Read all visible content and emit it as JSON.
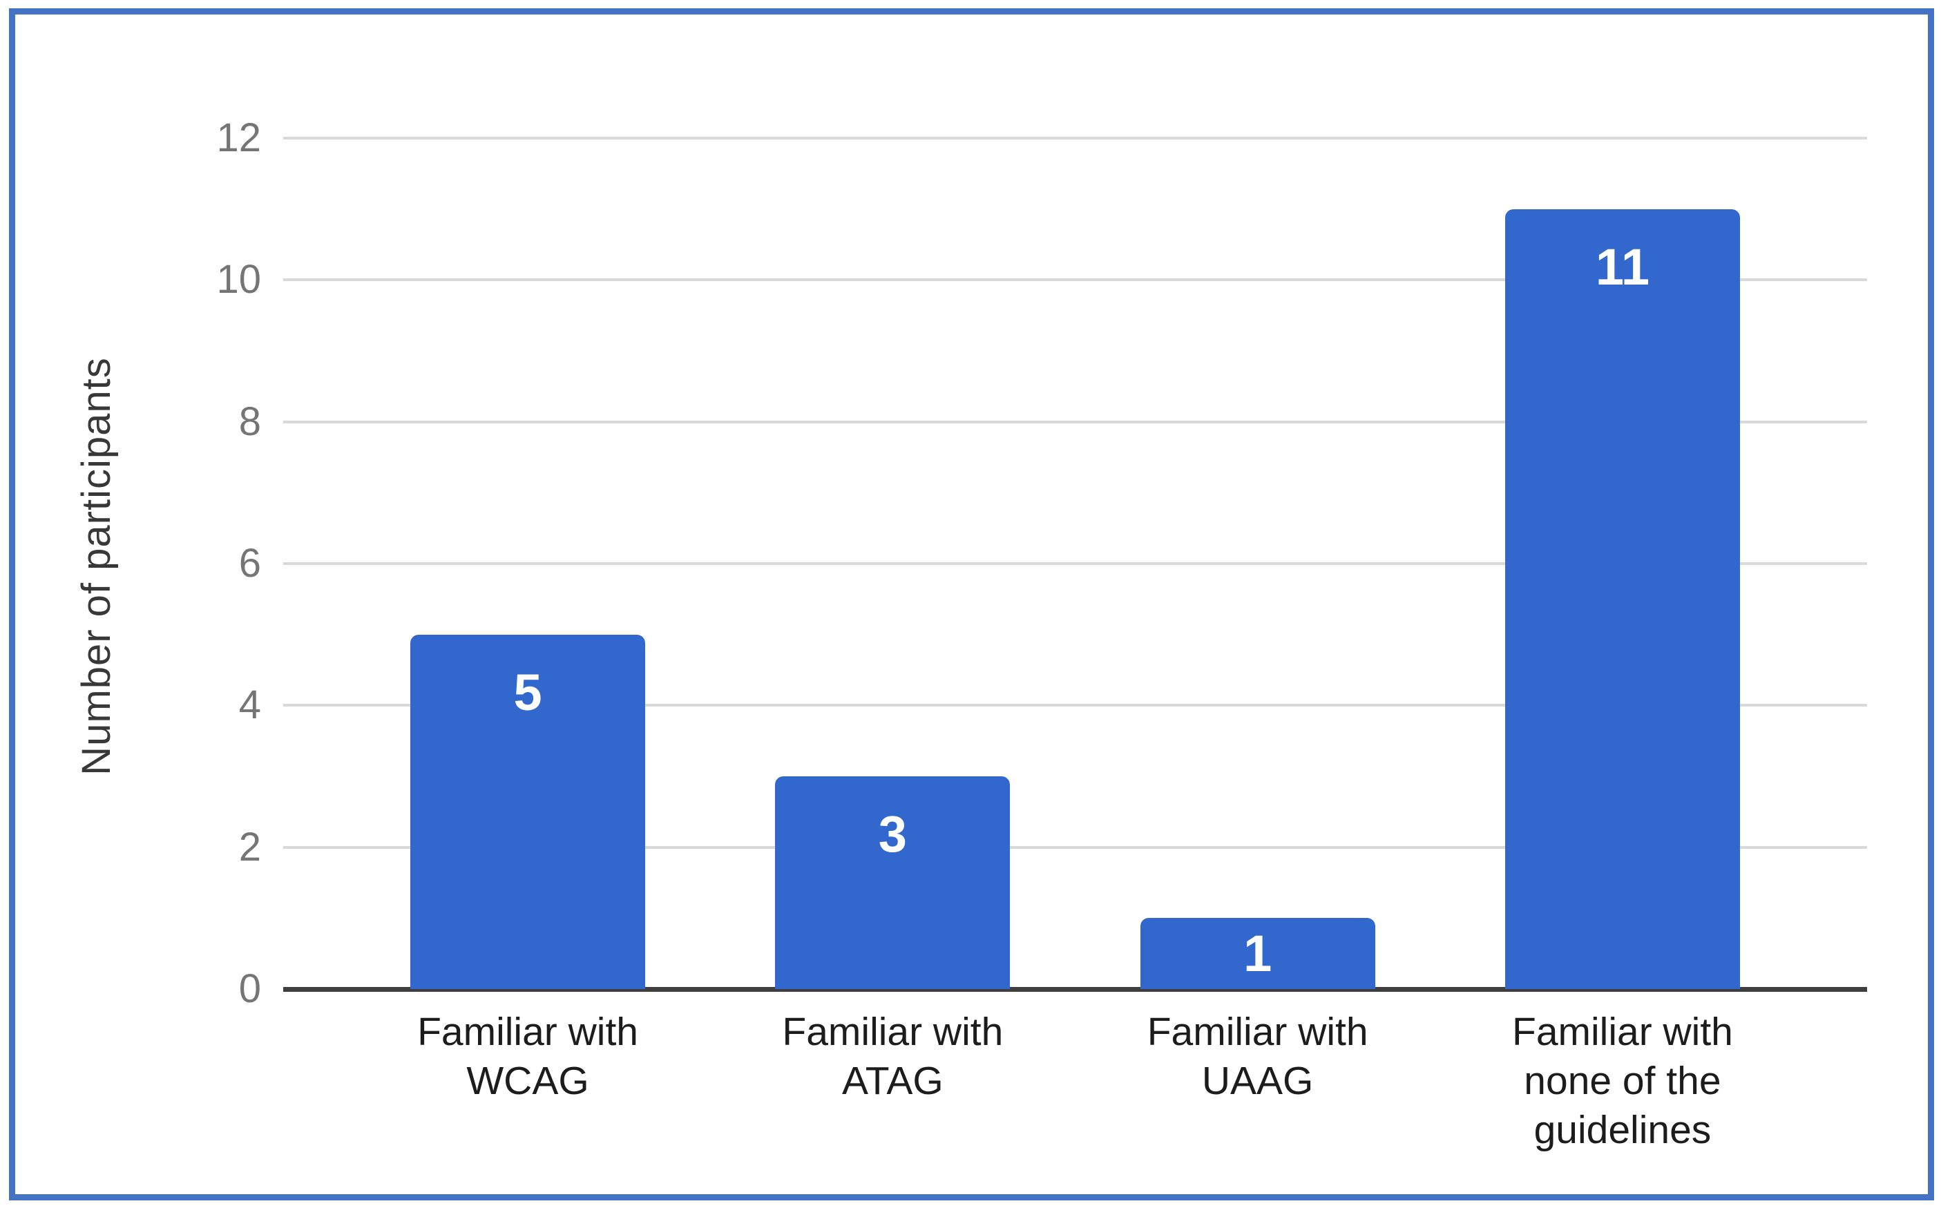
{
  "figure": {
    "kind": "embedded chart image",
    "selection_border_color": "#4472C4",
    "background_color": "#FFFFFF"
  },
  "chart_data": {
    "type": "bar",
    "title": "",
    "xlabel": "",
    "ylabel": "Number of participants",
    "categories": [
      "Familiar with WCAG",
      "Familiar with ATAG",
      "Familiar with UAAG",
      "Familiar with none of the guidelines"
    ],
    "categories_wrapped": [
      [
        "Familiar with",
        "WCAG"
      ],
      [
        "Familiar with",
        "ATAG"
      ],
      [
        "Familiar with",
        "UAAG"
      ],
      [
        "Familiar with",
        "none of the",
        "guidelines"
      ]
    ],
    "values": [
      5,
      3,
      1,
      11
    ],
    "value_labels_shown": true,
    "value_label_color": "#FFFFFF",
    "ylim": [
      0,
      12
    ],
    "yticks": [
      0,
      2,
      4,
      6,
      8,
      10,
      12
    ],
    "grid": true,
    "gridline_color": "#D9D9D9",
    "axis_line_color": "#3F3F3F",
    "tick_label_color": "#757575",
    "category_label_color": "#1C1C1C",
    "bar_color": "#3268CE",
    "legend_position": "none"
  }
}
